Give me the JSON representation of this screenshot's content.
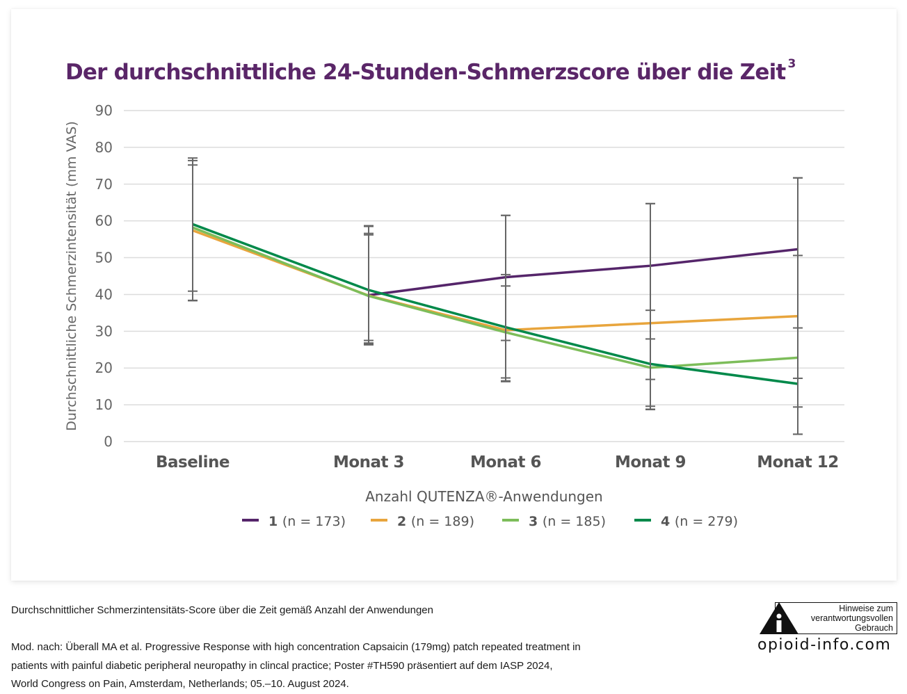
{
  "title": "Der durchschnittliche 24-Stunden-Schmerzscore über die Zeit",
  "title_footnote": "3",
  "caption": "Durchschnittlicher Schmerzintensitäts-Score über die Zeit gemäß Anzahl der Anwendungen",
  "reference_lines": [
    "Mod. nach: Überall MA et al. Progressive Response with high concentration Capsaicin (179mg) patch repeated treatment in",
    "patients with painful diabetic peripheral neuropathy in clincal practice; Poster #TH590 präsentiert auf dem IASP 2024,",
    "World  Congress on Pain, Amsterdam, Netherlands; 05.–10. August 2024."
  ],
  "badge": {
    "icon": "info-warning-triangle-icon",
    "lines": [
      "Hinweise zum",
      "verantwortungsvollen",
      "Gebrauch"
    ],
    "site": "opioid-info.com"
  },
  "chart_data": {
    "type": "line",
    "title": "Der durchschnittliche 24-Stunden-Schmerzscore über die Zeit",
    "xlabel": "Anzahl QUTENZA®-Anwendungen",
    "ylabel": "Durchschnittliche Schmerzintensität (mm VAS)",
    "categories": [
      "Baseline",
      "Monat 3",
      "Monat 6",
      "Monat 9",
      "Monat 12"
    ],
    "ylim": [
      0,
      90
    ],
    "yticks": [
      0,
      10,
      20,
      30,
      40,
      50,
      60,
      70,
      80,
      90
    ],
    "grid": true,
    "legend_position": "bottom",
    "series": [
      {
        "name": "1",
        "n_label": "(n = 173)",
        "color": "#55256a",
        "start_index": 1,
        "values": [
          null,
          39.8,
          44.7,
          47.8,
          52.3
        ],
        "error_low": [
          null,
          26.5,
          27.5,
          8.8,
          2.0
        ],
        "error_high": [
          null,
          56.2,
          61.5,
          64.7,
          71.7
        ]
      },
      {
        "name": "2",
        "n_label": "(n = 189)",
        "color": "#e8a53d",
        "start_index": 0,
        "values": [
          57.4,
          39.7,
          30.3,
          32.2,
          34.1
        ],
        "error_low": [
          38.3,
          26.8,
          16.3,
          9.6,
          17.2
        ],
        "error_high": [
          76.4,
          56.6,
          45.4,
          35.7,
          50.6
        ]
      },
      {
        "name": "3",
        "n_label": "(n = 185)",
        "color": "#7dbd5a",
        "start_index": 0,
        "values": [
          58.2,
          39.6,
          29.7,
          20.1,
          22.8
        ],
        "error_low": [
          40.9,
          26.3,
          17.3,
          16.9,
          9.4
        ],
        "error_high": [
          75.2,
          58.5,
          42.3,
          27.9,
          30.9
        ]
      },
      {
        "name": "4",
        "n_label": "(n = 279)",
        "color": "#00894a",
        "start_index": 0,
        "values": [
          59.1,
          41.2,
          31.1,
          21.1,
          15.7
        ],
        "error_low": [
          38.4,
          27.5,
          16.5,
          8.7,
          2.0
        ],
        "error_high": [
          77.1,
          58.7,
          61.5,
          64.7,
          71.7
        ]
      }
    ]
  }
}
